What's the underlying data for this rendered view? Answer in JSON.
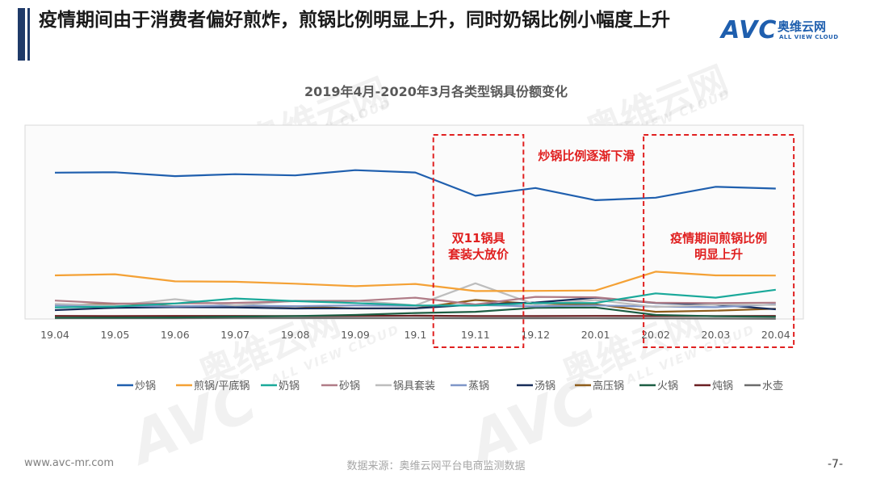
{
  "slide": {
    "title": "疫情期间由于消费者偏好煎炸，煎锅比例明显上升，同时奶锅比例小幅度上升",
    "logo_main": "AVC",
    "logo_cn": "奥维云网",
    "logo_en": "ALL VIEW CLOUD",
    "footer_left": "www.avc-mr.com",
    "footer_source": "数据来源：奥维云网平台电商监测数据",
    "page_number": "-7-"
  },
  "watermark": {
    "mark": "AVC",
    "cn": "奥维云网",
    "en": "ALL VIEW CLOUD"
  },
  "chart_data": {
    "type": "line",
    "title": "2019年4月-2020年3月各类型锅具份额变化",
    "categories": [
      "19.04",
      "19.05",
      "19.06",
      "19.07",
      "19.08",
      "19.09",
      "19.1",
      "19.11",
      "19.12",
      "20.01",
      "20.02",
      "20.03",
      "20.04"
    ],
    "ylim": [
      0,
      100
    ],
    "grid": false,
    "legend_position": "bottom",
    "series": [
      {
        "name": "炒锅",
        "color": "#1f5fae",
        "values": [
          75.5,
          75.7,
          73.7,
          74.7,
          74.1,
          76.8,
          75.6,
          63.6,
          67.6,
          61.3,
          62.6,
          68.2,
          67.3
        ]
      },
      {
        "name": "煎锅/平底锅",
        "color": "#f4a135",
        "values": [
          22.5,
          23.1,
          19.4,
          19.2,
          18.2,
          16.9,
          18.1,
          14.4,
          14.5,
          14.7,
          24.4,
          22.5,
          22.4
        ]
      },
      {
        "name": "奶锅",
        "color": "#1aa99a",
        "values": [
          6.0,
          6.4,
          8.0,
          10.6,
          9.2,
          8.2,
          7.0,
          6.9,
          8.2,
          8.3,
          13.2,
          11.0,
          15.1
        ]
      },
      {
        "name": "砂锅",
        "color": "#b07c87",
        "values": [
          9.5,
          8.0,
          8.0,
          8.3,
          9.2,
          9.3,
          11.0,
          7.5,
          11.4,
          11.2,
          8.4,
          8.2,
          8.4
        ]
      },
      {
        "name": "锅具套装",
        "color": "#bdbdbd",
        "values": [
          7.8,
          7.0,
          10.2,
          7.0,
          9.4,
          9.5,
          7.0,
          18.4,
          7.4,
          9.8,
          6.2,
          7.5,
          7.2
        ]
      },
      {
        "name": "蒸锅",
        "color": "#7f96c8",
        "values": [
          7.0,
          6.8,
          6.5,
          6.9,
          6.6,
          7.0,
          6.8,
          7.2,
          6.5,
          7.0,
          6.4,
          6.1,
          7.6
        ]
      },
      {
        "name": "汤锅",
        "color": "#172c59",
        "values": [
          4.6,
          5.8,
          6.1,
          6.0,
          5.4,
          5.5,
          5.5,
          7.4,
          8.5,
          11.0,
          8.3,
          7.4,
          5.0
        ]
      },
      {
        "name": "高压锅",
        "color": "#8e5c1a",
        "values": [
          7.2,
          7.8,
          6.6,
          6.8,
          6.5,
          5.4,
          5.5,
          9.8,
          7.8,
          7.6,
          3.7,
          4.3,
          5.3
        ]
      },
      {
        "name": "火锅",
        "color": "#1c5e43",
        "values": [
          0.7,
          0.7,
          0.8,
          1.2,
          1.5,
          2.1,
          3.1,
          3.7,
          5.8,
          5.9,
          2.1,
          1.4,
          1.1
        ]
      },
      {
        "name": "炖锅",
        "color": "#6a1f22",
        "values": [
          1.6,
          1.5,
          1.6,
          1.6,
          1.5,
          1.6,
          1.7,
          1.5,
          1.5,
          1.6,
          1.5,
          1.5,
          1.6
        ]
      },
      {
        "name": "水壶",
        "color": "#6b6b6b",
        "values": [
          0.4,
          0.4,
          0.4,
          0.5,
          0.5,
          0.5,
          0.5,
          0.4,
          0.4,
          0.4,
          0.3,
          0.2,
          0.1
        ]
      }
    ],
    "annotations": [
      {
        "text": "双11锅具\n套装大放价",
        "color": "#e02020"
      },
      {
        "text": "炒锅比例逐渐下滑",
        "color": "#e02020"
      },
      {
        "text": "疫情期间煎锅比例\n明显上升",
        "color": "#e02020"
      }
    ]
  }
}
